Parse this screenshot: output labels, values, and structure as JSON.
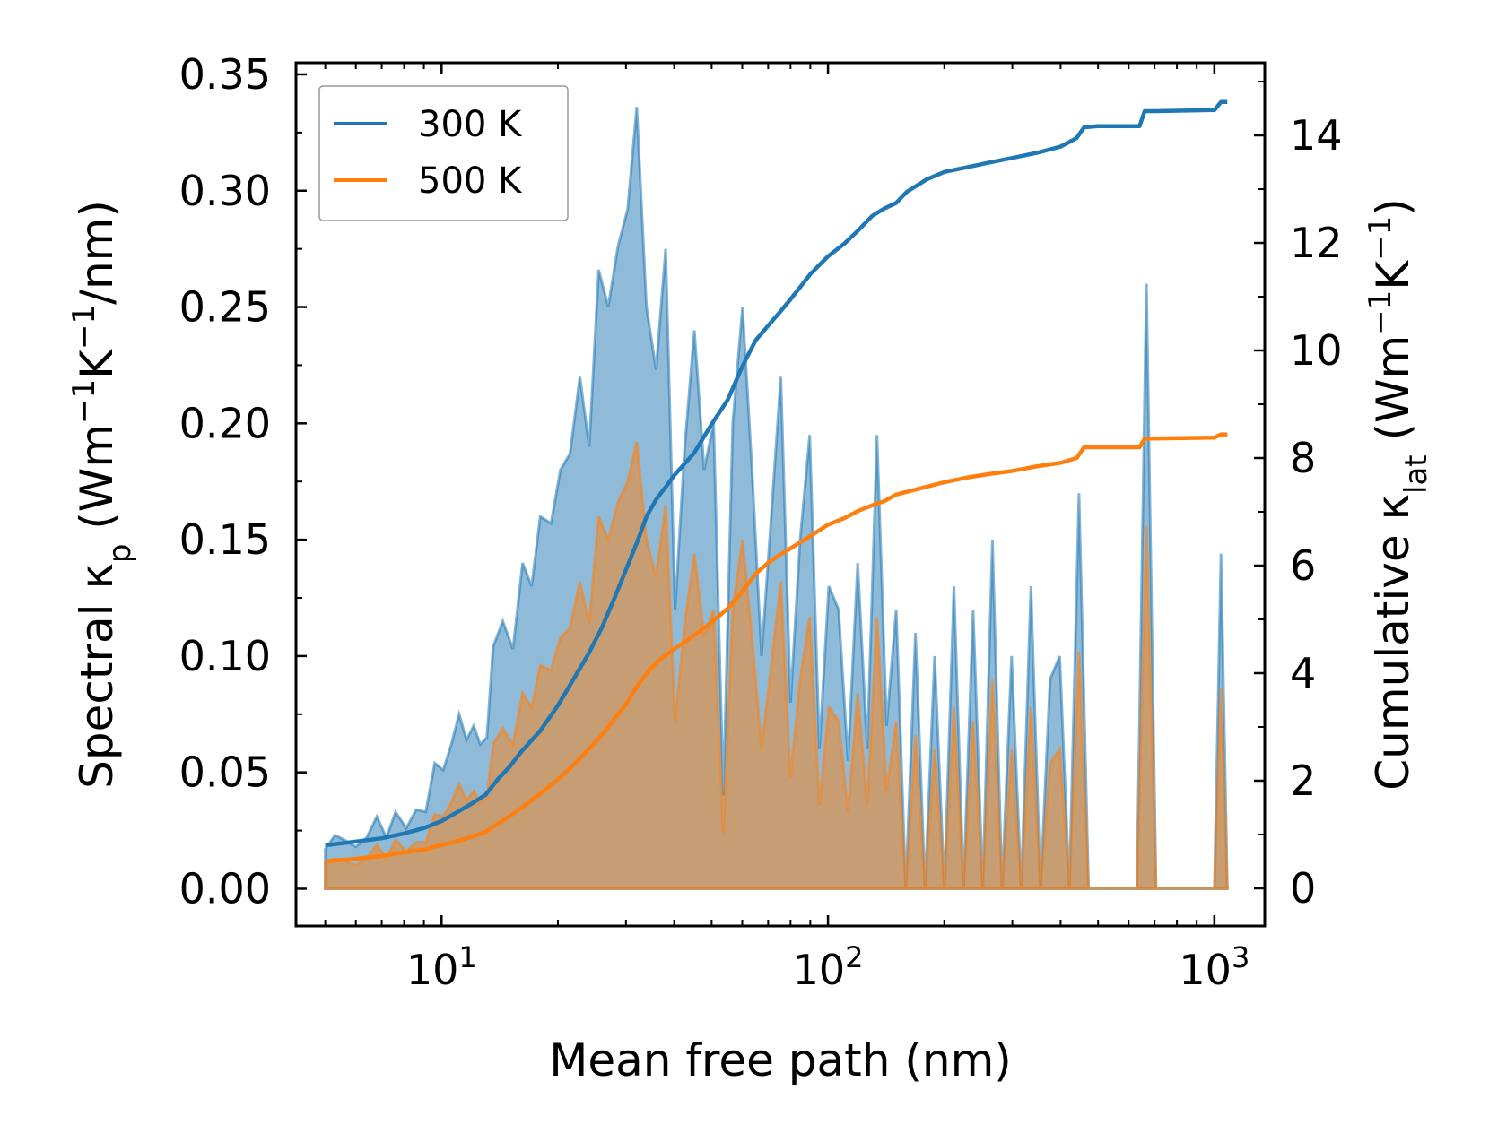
{
  "chart_data": {
    "type": "line",
    "title": "",
    "xlabel": "Mean free path (nm)",
    "xscale": "log",
    "xlim": [
      4.2,
      1350
    ],
    "x_ticks": [
      {
        "value": 10,
        "base": "10",
        "exp": "1"
      },
      {
        "value": 100,
        "base": "10",
        "exp": "2"
      },
      {
        "value": 1000,
        "base": "10",
        "exp": "3"
      }
    ],
    "left_axis": {
      "label": {
        "prefix": "Spectral κ",
        "sub": "p",
        "unit1": " (Wm",
        "sup1": "−1",
        "unit2": "K",
        "sup2": "−1",
        "unit3": "/nm)"
      },
      "ylim": [
        -0.016,
        0.355
      ],
      "ticks": [
        0.0,
        0.05,
        0.1,
        0.15,
        0.2,
        0.25,
        0.3,
        0.35
      ],
      "tick_labels": [
        "0.00",
        "0.05",
        "0.10",
        "0.15",
        "0.20",
        "0.25",
        "0.30",
        "0.35"
      ]
    },
    "right_axis": {
      "label": {
        "prefix": "Cumulative κ",
        "sub": "lat",
        "unit1": " (Wm",
        "sup1": "−1",
        "unit2": "K",
        "sup2": "−1",
        "unit3": ")"
      },
      "ylim": [
        -0.7,
        15.35
      ],
      "ticks": [
        0,
        2,
        4,
        6,
        8,
        10,
        12,
        14
      ],
      "tick_labels": [
        "0",
        "2",
        "4",
        "6",
        "8",
        "10",
        "12",
        "14"
      ]
    },
    "legend": {
      "position": "top-left"
    },
    "series": [
      {
        "name": "300 K",
        "color": "#1f77b4",
        "fill_color": "#1f77b4",
        "spectral": [
          [
            5.0,
            0.017
          ],
          [
            5.3,
            0.023
          ],
          [
            5.6,
            0.021
          ],
          [
            6.0,
            0.018
          ],
          [
            6.4,
            0.022
          ],
          [
            6.8,
            0.031
          ],
          [
            7.2,
            0.022
          ],
          [
            7.6,
            0.033
          ],
          [
            8.1,
            0.026
          ],
          [
            8.6,
            0.034
          ],
          [
            9.1,
            0.033
          ],
          [
            9.6,
            0.054
          ],
          [
            10.1,
            0.051
          ],
          [
            10.6,
            0.062
          ],
          [
            11.1,
            0.075
          ],
          [
            11.6,
            0.064
          ],
          [
            12.1,
            0.07
          ],
          [
            12.6,
            0.062
          ],
          [
            13.1,
            0.065
          ],
          [
            13.6,
            0.104
          ],
          [
            14.4,
            0.115
          ],
          [
            15.3,
            0.103
          ],
          [
            16.2,
            0.14
          ],
          [
            17.1,
            0.13
          ],
          [
            18.0,
            0.16
          ],
          [
            19.2,
            0.157
          ],
          [
            20.3,
            0.18
          ],
          [
            21.5,
            0.187
          ],
          [
            22.8,
            0.22
          ],
          [
            24.1,
            0.19
          ],
          [
            25.5,
            0.266
          ],
          [
            27.0,
            0.25
          ],
          [
            28.6,
            0.276
          ],
          [
            30.3,
            0.292
          ],
          [
            32.0,
            0.336
          ],
          [
            33.9,
            0.25
          ],
          [
            35.9,
            0.223
          ],
          [
            38.0,
            0.275
          ],
          [
            40.2,
            0.12
          ],
          [
            42.6,
            0.19
          ],
          [
            45.1,
            0.24
          ],
          [
            47.8,
            0.18
          ],
          [
            50.6,
            0.2
          ],
          [
            53.6,
            0.04
          ],
          [
            56.7,
            0.2
          ],
          [
            60.1,
            0.25
          ],
          [
            63.6,
            0.18
          ],
          [
            67.3,
            0.1
          ],
          [
            71.3,
            0.16
          ],
          [
            75.5,
            0.22
          ],
          [
            80.0,
            0.08
          ],
          [
            84.7,
            0.15
          ],
          [
            89.7,
            0.195
          ],
          [
            95.0,
            0.06
          ],
          [
            100.5,
            0.13
          ],
          [
            106.5,
            0.12
          ],
          [
            112.7,
            0.055
          ],
          [
            119.4,
            0.14
          ],
          [
            126.4,
            0.06
          ],
          [
            133.9,
            0.195
          ],
          [
            141.8,
            0.07
          ],
          [
            150.1,
            0.12
          ],
          [
            159.0,
            0.0
          ],
          [
            168.4,
            0.11
          ],
          [
            178.3,
            0.0
          ],
          [
            188.8,
            0.1
          ],
          [
            200.0,
            0.0
          ],
          [
            211.8,
            0.13
          ],
          [
            224.3,
            0.0
          ],
          [
            237.5,
            0.12
          ],
          [
            251.5,
            0.0
          ],
          [
            266.4,
            0.15
          ],
          [
            282.1,
            0.0
          ],
          [
            298.7,
            0.1
          ],
          [
            316.3,
            0.0
          ],
          [
            335.0,
            0.13
          ],
          [
            354.8,
            0.0
          ],
          [
            375.7,
            0.09
          ],
          [
            397.9,
            0.1
          ],
          [
            421.4,
            0.0
          ],
          [
            446.2,
            0.17
          ],
          [
            472.5,
            0.0
          ],
          [
            500.4,
            0.0
          ],
          [
            560.0,
            0.0
          ],
          [
            630.0,
            0.0
          ],
          [
            667.0,
            0.26
          ],
          [
            706.3,
            0.0
          ],
          [
            900.0,
            0.0
          ],
          [
            1000.0,
            0.0
          ],
          [
            1040.0,
            0.144
          ],
          [
            1080.0,
            0.0
          ]
        ],
        "cumulative": [
          [
            5.0,
            0.8
          ],
          [
            6.0,
            0.87
          ],
          [
            7.0,
            0.93
          ],
          [
            8.0,
            1.02
          ],
          [
            9.0,
            1.12
          ],
          [
            10.0,
            1.25
          ],
          [
            11.0,
            1.42
          ],
          [
            12.0,
            1.58
          ],
          [
            13.0,
            1.74
          ],
          [
            14.0,
            2.03
          ],
          [
            15.0,
            2.26
          ],
          [
            16.0,
            2.52
          ],
          [
            18.0,
            2.93
          ],
          [
            20.0,
            3.4
          ],
          [
            22.0,
            3.9
          ],
          [
            24.0,
            4.36
          ],
          [
            26.0,
            4.85
          ],
          [
            28.0,
            5.39
          ],
          [
            30.0,
            5.92
          ],
          [
            32.0,
            6.42
          ],
          [
            34.0,
            6.93
          ],
          [
            36.0,
            7.24
          ],
          [
            38.0,
            7.46
          ],
          [
            40.0,
            7.68
          ],
          [
            45.0,
            8.09
          ],
          [
            50.0,
            8.63
          ],
          [
            55.0,
            9.08
          ],
          [
            60.0,
            9.7
          ],
          [
            65.0,
            10.19
          ],
          [
            70.0,
            10.46
          ],
          [
            75.0,
            10.71
          ],
          [
            80.0,
            10.95
          ],
          [
            90.0,
            11.42
          ],
          [
            100.0,
            11.75
          ],
          [
            110.0,
            11.98
          ],
          [
            120.0,
            12.24
          ],
          [
            130.0,
            12.5
          ],
          [
            140.0,
            12.64
          ],
          [
            150.0,
            12.74
          ],
          [
            160.0,
            12.95
          ],
          [
            180.0,
            13.18
          ],
          [
            200.0,
            13.32
          ],
          [
            230.0,
            13.41
          ],
          [
            260.0,
            13.49
          ],
          [
            300.0,
            13.58
          ],
          [
            350.0,
            13.68
          ],
          [
            400.0,
            13.79
          ],
          [
            440.0,
            13.95
          ],
          [
            460.0,
            14.15
          ],
          [
            500.0,
            14.17
          ],
          [
            640.0,
            14.17
          ],
          [
            660.0,
            14.45
          ],
          [
            700.0,
            14.45
          ],
          [
            1000.0,
            14.47
          ],
          [
            1040.0,
            14.62
          ],
          [
            1080.0,
            14.62
          ]
        ]
      },
      {
        "name": "500 K",
        "color": "#ff7f0e",
        "fill_color": "#ff7f0e",
        "spectral": [
          [
            5.0,
            0.011
          ],
          [
            5.3,
            0.013
          ],
          [
            5.6,
            0.012
          ],
          [
            6.0,
            0.01
          ],
          [
            6.4,
            0.013
          ],
          [
            6.8,
            0.019
          ],
          [
            7.2,
            0.013
          ],
          [
            7.6,
            0.021
          ],
          [
            8.1,
            0.016
          ],
          [
            8.6,
            0.02
          ],
          [
            9.1,
            0.02
          ],
          [
            9.6,
            0.032
          ],
          [
            10.1,
            0.031
          ],
          [
            10.6,
            0.037
          ],
          [
            11.1,
            0.045
          ],
          [
            11.6,
            0.038
          ],
          [
            12.1,
            0.042
          ],
          [
            12.6,
            0.037
          ],
          [
            13.1,
            0.039
          ],
          [
            13.6,
            0.062
          ],
          [
            14.4,
            0.069
          ],
          [
            15.3,
            0.062
          ],
          [
            16.2,
            0.084
          ],
          [
            17.1,
            0.078
          ],
          [
            18.0,
            0.096
          ],
          [
            19.2,
            0.094
          ],
          [
            20.3,
            0.108
          ],
          [
            21.5,
            0.112
          ],
          [
            22.8,
            0.132
          ],
          [
            24.1,
            0.114
          ],
          [
            25.5,
            0.16
          ],
          [
            27.0,
            0.15
          ],
          [
            28.6,
            0.166
          ],
          [
            30.3,
            0.175
          ],
          [
            32.0,
            0.192
          ],
          [
            33.9,
            0.15
          ],
          [
            35.9,
            0.134
          ],
          [
            38.0,
            0.165
          ],
          [
            40.2,
            0.072
          ],
          [
            42.6,
            0.114
          ],
          [
            45.1,
            0.144
          ],
          [
            47.8,
            0.108
          ],
          [
            50.6,
            0.12
          ],
          [
            53.6,
            0.024
          ],
          [
            56.7,
            0.12
          ],
          [
            60.1,
            0.15
          ],
          [
            63.6,
            0.108
          ],
          [
            67.3,
            0.06
          ],
          [
            71.3,
            0.096
          ],
          [
            75.5,
            0.132
          ],
          [
            80.0,
            0.048
          ],
          [
            84.7,
            0.09
          ],
          [
            89.7,
            0.117
          ],
          [
            95.0,
            0.036
          ],
          [
            100.5,
            0.078
          ],
          [
            106.5,
            0.072
          ],
          [
            112.7,
            0.033
          ],
          [
            119.4,
            0.084
          ],
          [
            126.4,
            0.036
          ],
          [
            133.9,
            0.117
          ],
          [
            141.8,
            0.042
          ],
          [
            150.1,
            0.072
          ],
          [
            159.0,
            0.0
          ],
          [
            168.4,
            0.066
          ],
          [
            178.3,
            0.0
          ],
          [
            188.8,
            0.06
          ],
          [
            200.0,
            0.0
          ],
          [
            211.8,
            0.078
          ],
          [
            224.3,
            0.0
          ],
          [
            237.5,
            0.072
          ],
          [
            251.5,
            0.0
          ],
          [
            266.4,
            0.09
          ],
          [
            282.1,
            0.0
          ],
          [
            298.7,
            0.06
          ],
          [
            316.3,
            0.0
          ],
          [
            335.0,
            0.078
          ],
          [
            354.8,
            0.0
          ],
          [
            375.7,
            0.054
          ],
          [
            397.9,
            0.06
          ],
          [
            421.4,
            0.0
          ],
          [
            446.2,
            0.102
          ],
          [
            472.5,
            0.0
          ],
          [
            500.4,
            0.0
          ],
          [
            560.0,
            0.0
          ],
          [
            630.0,
            0.0
          ],
          [
            667.0,
            0.156
          ],
          [
            706.3,
            0.0
          ],
          [
            900.0,
            0.0
          ],
          [
            1000.0,
            0.0
          ],
          [
            1040.0,
            0.086
          ],
          [
            1080.0,
            0.0
          ]
        ],
        "cumulative": [
          [
            5.0,
            0.5
          ],
          [
            6.0,
            0.55
          ],
          [
            7.0,
            0.6
          ],
          [
            8.0,
            0.67
          ],
          [
            9.0,
            0.72
          ],
          [
            10.0,
            0.8
          ],
          [
            11.0,
            0.88
          ],
          [
            12.0,
            0.96
          ],
          [
            13.0,
            1.05
          ],
          [
            14.0,
            1.2
          ],
          [
            15.0,
            1.34
          ],
          [
            16.0,
            1.48
          ],
          [
            18.0,
            1.76
          ],
          [
            20.0,
            2.02
          ],
          [
            22.0,
            2.3
          ],
          [
            24.0,
            2.58
          ],
          [
            26.0,
            2.85
          ],
          [
            28.0,
            3.15
          ],
          [
            30.0,
            3.42
          ],
          [
            32.0,
            3.75
          ],
          [
            34.0,
            4.0
          ],
          [
            36.0,
            4.2
          ],
          [
            40.0,
            4.45
          ],
          [
            45.0,
            4.7
          ],
          [
            50.0,
            4.95
          ],
          [
            55.0,
            5.2
          ],
          [
            60.0,
            5.52
          ],
          [
            65.0,
            5.85
          ],
          [
            70.0,
            6.05
          ],
          [
            75.0,
            6.2
          ],
          [
            80.0,
            6.32
          ],
          [
            90.0,
            6.55
          ],
          [
            100.0,
            6.76
          ],
          [
            110.0,
            6.88
          ],
          [
            120.0,
            7.02
          ],
          [
            130.0,
            7.12
          ],
          [
            140.0,
            7.2
          ],
          [
            150.0,
            7.32
          ],
          [
            170.0,
            7.42
          ],
          [
            200.0,
            7.55
          ],
          [
            230.0,
            7.64
          ],
          [
            260.0,
            7.7
          ],
          [
            300.0,
            7.76
          ],
          [
            350.0,
            7.85
          ],
          [
            400.0,
            7.91
          ],
          [
            440.0,
            8.0
          ],
          [
            460.0,
            8.2
          ],
          [
            640.0,
            8.2
          ],
          [
            660.0,
            8.36
          ],
          [
            1000.0,
            8.38
          ],
          [
            1040.0,
            8.44
          ],
          [
            1080.0,
            8.44
          ]
        ]
      }
    ]
  }
}
